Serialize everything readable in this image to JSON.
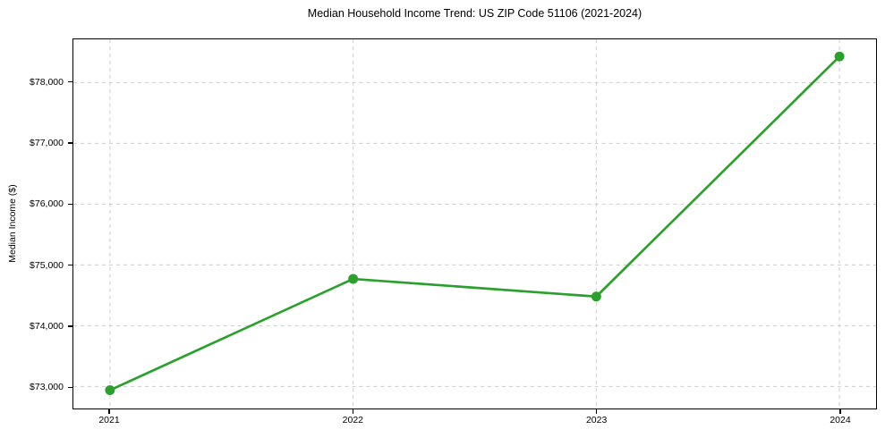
{
  "chart_data": {
    "type": "line",
    "title": "Median Household Income Trend: US ZIP Code 51106 (2021-2024)",
    "xlabel": "",
    "ylabel": "Median Income ($)",
    "categories": [
      "2021",
      "2022",
      "2023",
      "2024"
    ],
    "series": [
      {
        "name": "Median Household Income",
        "values": [
          72940,
          74770,
          74480,
          78430
        ]
      }
    ],
    "ylim": [
      72638,
      78712
    ],
    "yticks": [
      {
        "value": 73000,
        "label": "$73,000"
      },
      {
        "value": 74000,
        "label": "$74,000"
      },
      {
        "value": 75000,
        "label": "$75,000"
      },
      {
        "value": 76000,
        "label": "$76,000"
      },
      {
        "value": 77000,
        "label": "$77,000"
      },
      {
        "value": 78000,
        "label": "$78,000"
      }
    ],
    "grid": true,
    "grid_style": "dashed",
    "legend_position": "none",
    "colors": {
      "line": "#2ca02c",
      "marker": "#2ca02c",
      "grid": "#cccccc",
      "axis": "#000000",
      "text": "#000000",
      "background": "#ffffff"
    }
  }
}
